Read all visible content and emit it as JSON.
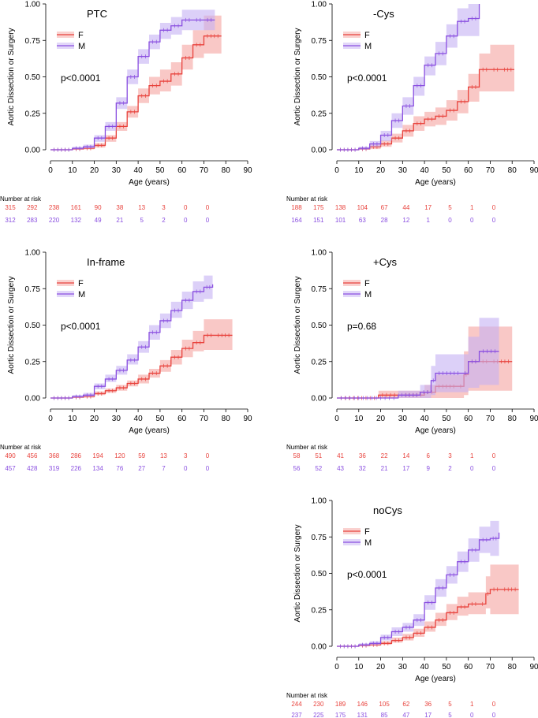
{
  "figure": {
    "y_axis_label": "Aortic Dissection or Surgery",
    "x_axis_label": "Age (years)",
    "risk_header": "Number at risk"
  },
  "colors": {
    "F_line": "#e8423c",
    "F_band": "#f5a3a0",
    "M_line": "#8a4fe0",
    "M_band": "#c5b0f3"
  },
  "chart_data": [
    {
      "type": "line",
      "title": "PTC",
      "pvalue": "p<0.0001",
      "xlabel": "Age (years)",
      "ylabel": "Aortic Dissection or Surgery",
      "xlim": [
        0,
        90
      ],
      "ylim": [
        0,
        1
      ],
      "xticks": [
        "0",
        "10",
        "20",
        "30",
        "40",
        "50",
        "60",
        "70",
        "80",
        "90"
      ],
      "yticks": [
        "0.00",
        "0.25",
        "0.50",
        "0.75",
        "1.00"
      ],
      "legend": [
        "F",
        "M"
      ],
      "series": [
        {
          "name": "F",
          "x": [
            0,
            10,
            15,
            20,
            25,
            30,
            35,
            40,
            45,
            50,
            55,
            60,
            65,
            70,
            78
          ],
          "y": [
            0,
            0.005,
            0.01,
            0.03,
            0.08,
            0.16,
            0.26,
            0.37,
            0.44,
            0.47,
            0.52,
            0.63,
            0.72,
            0.78,
            0.78
          ],
          "lower": [
            0,
            0,
            0.003,
            0.015,
            0.055,
            0.13,
            0.22,
            0.32,
            0.38,
            0.4,
            0.44,
            0.55,
            0.63,
            0.66,
            0.66
          ],
          "upper": [
            0,
            0.01,
            0.02,
            0.045,
            0.1,
            0.19,
            0.3,
            0.42,
            0.5,
            0.55,
            0.6,
            0.72,
            0.82,
            0.92,
            0.92
          ]
        },
        {
          "name": "M",
          "x": [
            0,
            10,
            15,
            20,
            25,
            30,
            35,
            40,
            45,
            50,
            55,
            60,
            65,
            70,
            75
          ],
          "y": [
            0,
            0.01,
            0.02,
            0.08,
            0.16,
            0.32,
            0.5,
            0.64,
            0.74,
            0.82,
            0.85,
            0.89,
            0.89,
            0.89,
            0.89
          ],
          "lower": [
            0,
            0.002,
            0.01,
            0.055,
            0.13,
            0.28,
            0.45,
            0.59,
            0.69,
            0.76,
            0.79,
            0.82,
            0.82,
            0.82,
            0.82
          ],
          "upper": [
            0,
            0.02,
            0.035,
            0.1,
            0.19,
            0.36,
            0.55,
            0.69,
            0.79,
            0.87,
            0.91,
            0.96,
            0.96,
            0.96,
            0.96
          ]
        }
      ],
      "risk": {
        "F": [
          "315",
          "292",
          "238",
          "161",
          "90",
          "38",
          "13",
          "3",
          "0",
          "0"
        ],
        "M": [
          "312",
          "283",
          "220",
          "132",
          "49",
          "21",
          "5",
          "2",
          "0",
          "0"
        ]
      }
    },
    {
      "type": "line",
      "title": "-Cys",
      "pvalue": "p<0.0001",
      "xlabel": "Age (years)",
      "ylabel": "Aortic Dissection or Surgery",
      "xlim": [
        0,
        90
      ],
      "ylim": [
        0,
        1
      ],
      "xticks": [
        "0",
        "10",
        "20",
        "30",
        "40",
        "50",
        "60",
        "70",
        "80",
        "90"
      ],
      "yticks": [
        "0.00",
        "0.25",
        "0.50",
        "0.75",
        "1.00"
      ],
      "legend": [
        "F",
        "M"
      ],
      "series": [
        {
          "name": "F",
          "x": [
            0,
            10,
            15,
            20,
            25,
            30,
            35,
            40,
            45,
            50,
            55,
            60,
            65,
            70,
            75,
            81
          ],
          "y": [
            0,
            0.005,
            0.02,
            0.04,
            0.08,
            0.13,
            0.18,
            0.21,
            0.23,
            0.27,
            0.33,
            0.43,
            0.55,
            0.55,
            0.55,
            0.55
          ],
          "lower": [
            0,
            0,
            0.005,
            0.02,
            0.05,
            0.09,
            0.13,
            0.16,
            0.17,
            0.2,
            0.25,
            0.33,
            0.4,
            0.4,
            0.4,
            0.4
          ],
          "upper": [
            0,
            0.015,
            0.035,
            0.065,
            0.11,
            0.17,
            0.23,
            0.26,
            0.29,
            0.34,
            0.41,
            0.52,
            0.66,
            0.72,
            0.72,
            0.72
          ]
        },
        {
          "name": "M",
          "x": [
            0,
            10,
            15,
            20,
            25,
            30,
            35,
            40,
            45,
            50,
            55,
            60,
            65
          ],
          "y": [
            0,
            0.01,
            0.04,
            0.1,
            0.2,
            0.3,
            0.44,
            0.58,
            0.66,
            0.78,
            0.88,
            0.9,
            1.0
          ],
          "lower": [
            0,
            0,
            0.02,
            0.06,
            0.15,
            0.24,
            0.37,
            0.51,
            0.58,
            0.7,
            0.78,
            0.78,
            0.9
          ],
          "upper": [
            0,
            0.02,
            0.06,
            0.13,
            0.25,
            0.36,
            0.5,
            0.64,
            0.74,
            0.86,
            0.97,
            1.0,
            1.0
          ]
        }
      ],
      "risk": {
        "F": [
          "188",
          "175",
          "138",
          "104",
          "67",
          "44",
          "17",
          "5",
          "1",
          "0"
        ],
        "M": [
          "164",
          "151",
          "101",
          "63",
          "28",
          "12",
          "1",
          "0",
          "0",
          "0"
        ]
      }
    },
    {
      "type": "line",
      "title": "In-frame",
      "pvalue": "p<0.0001",
      "xlabel": "Age (years)",
      "ylabel": "Aortic Dissection or Surgery",
      "xlim": [
        0,
        90
      ],
      "ylim": [
        0,
        1
      ],
      "xticks": [
        "0",
        "10",
        "20",
        "30",
        "40",
        "50",
        "60",
        "70",
        "80",
        "90"
      ],
      "yticks": [
        "0.00",
        "0.25",
        "0.50",
        "0.75",
        "1.00"
      ],
      "legend": [
        "F",
        "M"
      ],
      "series": [
        {
          "name": "F",
          "x": [
            0,
            10,
            15,
            20,
            25,
            30,
            35,
            40,
            45,
            50,
            55,
            60,
            65,
            70,
            75,
            83
          ],
          "y": [
            0,
            0.005,
            0.01,
            0.03,
            0.05,
            0.07,
            0.1,
            0.13,
            0.17,
            0.22,
            0.28,
            0.34,
            0.38,
            0.43,
            0.43,
            0.43
          ],
          "lower": [
            0,
            0,
            0.003,
            0.02,
            0.035,
            0.05,
            0.08,
            0.1,
            0.14,
            0.18,
            0.23,
            0.28,
            0.32,
            0.33,
            0.33,
            0.33
          ],
          "upper": [
            0,
            0.01,
            0.02,
            0.045,
            0.065,
            0.09,
            0.12,
            0.16,
            0.2,
            0.26,
            0.33,
            0.4,
            0.46,
            0.54,
            0.54,
            0.54
          ]
        },
        {
          "name": "M",
          "x": [
            0,
            10,
            15,
            20,
            25,
            30,
            35,
            40,
            45,
            50,
            55,
            60,
            65,
            70,
            74
          ],
          "y": [
            0,
            0.01,
            0.02,
            0.08,
            0.13,
            0.19,
            0.26,
            0.35,
            0.45,
            0.53,
            0.6,
            0.67,
            0.73,
            0.76,
            0.78
          ],
          "lower": [
            0,
            0.002,
            0.01,
            0.06,
            0.11,
            0.16,
            0.23,
            0.31,
            0.4,
            0.48,
            0.55,
            0.61,
            0.66,
            0.68,
            0.7
          ],
          "upper": [
            0,
            0.02,
            0.035,
            0.1,
            0.16,
            0.22,
            0.3,
            0.39,
            0.5,
            0.58,
            0.66,
            0.73,
            0.8,
            0.84,
            0.87
          ]
        }
      ],
      "risk": {
        "F": [
          "490",
          "456",
          "368",
          "286",
          "194",
          "120",
          "59",
          "13",
          "3",
          "0"
        ],
        "M": [
          "457",
          "428",
          "319",
          "226",
          "134",
          "76",
          "27",
          "7",
          "0",
          "0"
        ]
      }
    },
    {
      "type": "line",
      "title": "+Cys",
      "pvalue": "p=0.68",
      "xlabel": "Age (years)",
      "ylabel": "Aortic Dissection or Surgery",
      "xlim": [
        0,
        90
      ],
      "ylim": [
        0,
        1
      ],
      "xticks": [
        "0",
        "10",
        "20",
        "30",
        "40",
        "50",
        "60",
        "70",
        "80",
        "90"
      ],
      "yticks": [
        "0.00",
        "0.25",
        "0.50",
        "0.75",
        "1.00"
      ],
      "legend": [
        "F",
        "M"
      ],
      "series": [
        {
          "name": "F",
          "x": [
            0,
            19,
            30,
            40,
            45,
            55,
            58,
            60,
            65,
            70,
            80
          ],
          "y": [
            0,
            0.02,
            0.02,
            0.04,
            0.08,
            0.08,
            0.16,
            0.25,
            0.25,
            0.25,
            0.25
          ],
          "lower": [
            0,
            0,
            0,
            0,
            0,
            0,
            0.02,
            0.05,
            0.05,
            0.05,
            0.05
          ],
          "upper": [
            0,
            0.05,
            0.05,
            0.09,
            0.16,
            0.16,
            0.32,
            0.49,
            0.49,
            0.49,
            0.49
          ]
        },
        {
          "name": "M",
          "x": [
            0,
            28,
            38,
            43,
            45,
            57,
            60,
            65,
            74
          ],
          "y": [
            0,
            0.02,
            0.04,
            0.12,
            0.17,
            0.17,
            0.25,
            0.32,
            0.32
          ],
          "lower": [
            0,
            0,
            0,
            0.02,
            0.04,
            0.04,
            0.07,
            0.09,
            0.09
          ],
          "upper": [
            0,
            0.05,
            0.09,
            0.22,
            0.3,
            0.3,
            0.42,
            0.55,
            0.55
          ]
        }
      ],
      "risk": {
        "F": [
          "58",
          "51",
          "41",
          "36",
          "22",
          "14",
          "6",
          "3",
          "1",
          "0"
        ],
        "M": [
          "56",
          "52",
          "43",
          "32",
          "21",
          "17",
          "9",
          "2",
          "0",
          "0"
        ]
      }
    },
    {
      "type": "line",
      "title": "noCys",
      "pvalue": "p<0.0001",
      "xlabel": "Age (years)",
      "ylabel": "Aortic Dissection or Surgery",
      "xlim": [
        0,
        90
      ],
      "ylim": [
        0,
        1
      ],
      "xticks": [
        "0",
        "10",
        "20",
        "30",
        "40",
        "50",
        "60",
        "70",
        "80",
        "90"
      ],
      "yticks": [
        "0.00",
        "0.25",
        "0.50",
        "0.75",
        "1.00"
      ],
      "legend": [
        "F",
        "M"
      ],
      "series": [
        {
          "name": "F",
          "x": [
            0,
            10,
            15,
            20,
            25,
            30,
            35,
            40,
            45,
            50,
            55,
            60,
            65,
            68,
            70,
            75,
            83
          ],
          "y": [
            0,
            0.005,
            0.01,
            0.02,
            0.04,
            0.06,
            0.09,
            0.13,
            0.18,
            0.23,
            0.27,
            0.29,
            0.29,
            0.36,
            0.39,
            0.39,
            0.39
          ],
          "lower": [
            0,
            0,
            0.003,
            0.01,
            0.025,
            0.04,
            0.065,
            0.1,
            0.14,
            0.18,
            0.21,
            0.22,
            0.22,
            0.26,
            0.22,
            0.22,
            0.22
          ],
          "upper": [
            0,
            0.01,
            0.02,
            0.035,
            0.06,
            0.085,
            0.12,
            0.17,
            0.23,
            0.29,
            0.34,
            0.37,
            0.37,
            0.48,
            0.56,
            0.56,
            0.56
          ]
        },
        {
          "name": "M",
          "x": [
            0,
            10,
            15,
            20,
            25,
            30,
            35,
            40,
            45,
            50,
            55,
            60,
            65,
            70,
            74
          ],
          "y": [
            0,
            0.01,
            0.02,
            0.06,
            0.1,
            0.13,
            0.18,
            0.3,
            0.4,
            0.49,
            0.58,
            0.66,
            0.73,
            0.74,
            0.78
          ],
          "lower": [
            0,
            0.002,
            0.01,
            0.04,
            0.07,
            0.1,
            0.14,
            0.25,
            0.34,
            0.43,
            0.51,
            0.58,
            0.64,
            0.62,
            0.66
          ],
          "upper": [
            0,
            0.02,
            0.035,
            0.08,
            0.13,
            0.16,
            0.22,
            0.35,
            0.46,
            0.55,
            0.65,
            0.74,
            0.82,
            0.86,
            0.91
          ]
        }
      ],
      "risk": {
        "F": [
          "244",
          "230",
          "189",
          "146",
          "105",
          "62",
          "36",
          "5",
          "1",
          "0"
        ],
        "M": [
          "237",
          "225",
          "175",
          "131",
          "85",
          "47",
          "17",
          "5",
          "0",
          "0"
        ]
      }
    }
  ]
}
